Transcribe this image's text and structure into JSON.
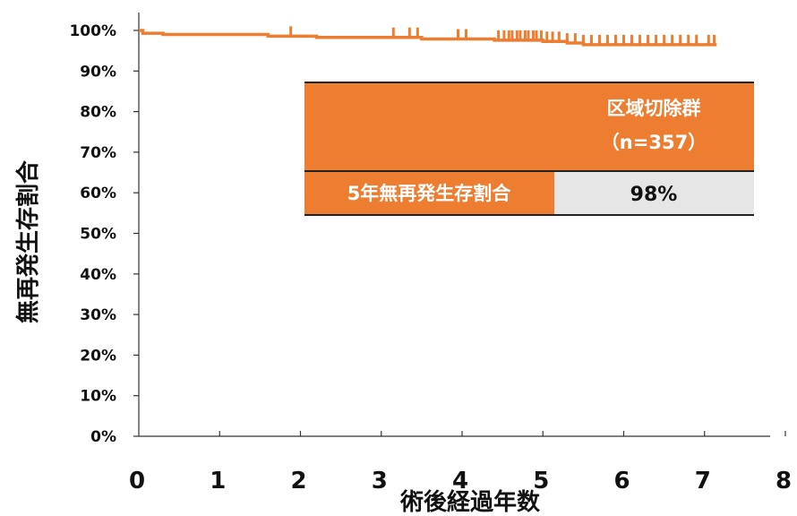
{
  "chart_data": {
    "type": "line",
    "title": "",
    "xlabel": "術後経過年数",
    "ylabel": "無再発生存割合",
    "xlim": [
      0,
      8
    ],
    "ylim": [
      0,
      100
    ],
    "x_ticks": [
      "0",
      "1",
      "2",
      "3",
      "4",
      "5",
      "6",
      "7",
      "8"
    ],
    "y_ticks": [
      "0%",
      "10%",
      "20%",
      "30%",
      "40%",
      "50%",
      "60%",
      "70%",
      "80%",
      "90%",
      "100%"
    ],
    "grid": false,
    "series": [
      {
        "name": "区域切除群",
        "color": "#ED7D31",
        "x": [
          0,
          0.05,
          0.05,
          0.3,
          0.3,
          1.6,
          1.6,
          2.2,
          2.2,
          3.5,
          3.5,
          4.4,
          4.4,
          5.0,
          5.0,
          5.3,
          5.3,
          5.5,
          5.5,
          7.15
        ],
        "y": [
          100,
          100,
          99.3,
          99.3,
          99.0,
          99.0,
          98.6,
          98.6,
          98.3,
          98.3,
          97.9,
          97.9,
          97.6,
          97.6,
          97.3,
          97.3,
          96.9,
          96.9,
          96.5,
          96.5
        ],
        "censor_x": [
          1.88,
          3.15,
          3.35,
          3.45,
          3.95,
          4.05,
          4.45,
          4.52,
          4.58,
          4.62,
          4.68,
          4.72,
          4.78,
          4.82,
          4.88,
          4.92,
          4.98,
          5.05,
          5.12,
          5.2,
          5.3,
          5.4,
          5.5,
          5.6,
          5.7,
          5.8,
          5.9,
          6.0,
          6.1,
          6.2,
          6.3,
          6.4,
          6.5,
          6.6,
          6.7,
          6.8,
          6.9,
          7.05,
          7.12
        ]
      }
    ]
  },
  "legend": {
    "group_label": "区域切除群",
    "n_label": "（n=357）",
    "metric_label": "5年無再発生存割合",
    "metric_value": "98%",
    "colors": {
      "accent": "#ED7D31",
      "value_bg": "#E6E6E6",
      "border": "#222222"
    }
  }
}
